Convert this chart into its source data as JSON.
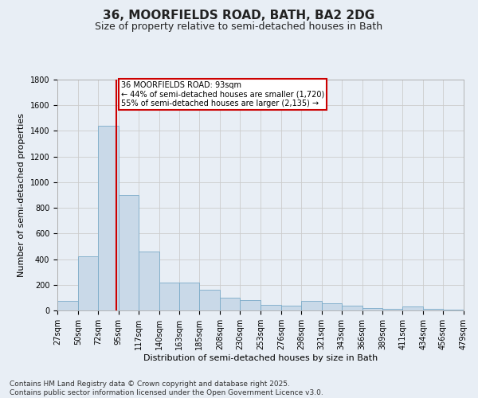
{
  "title": "36, MOORFIELDS ROAD, BATH, BA2 2DG",
  "subtitle": "Size of property relative to semi-detached houses in Bath",
  "xlabel": "Distribution of semi-detached houses by size in Bath",
  "ylabel": "Number of semi-detached properties",
  "footnote1": "Contains HM Land Registry data © Crown copyright and database right 2025.",
  "footnote2": "Contains public sector information licensed under the Open Government Licence v3.0.",
  "annotation_title": "36 MOORFIELDS ROAD: 93sqm",
  "annotation_line1": "← 44% of semi-detached houses are smaller (1,720)",
  "annotation_line2": "55% of semi-detached houses are larger (2,135) →",
  "property_size": 93,
  "bar_left_edges": [
    27,
    50,
    72,
    95,
    117,
    140,
    163,
    185,
    208,
    230,
    253,
    276,
    298,
    321,
    343,
    366,
    389,
    411,
    434,
    456
  ],
  "bar_widths": [
    23,
    22,
    23,
    22,
    23,
    23,
    22,
    23,
    22,
    23,
    23,
    22,
    23,
    22,
    23,
    23,
    22,
    23,
    22,
    23
  ],
  "bar_heights": [
    75,
    420,
    1440,
    900,
    460,
    215,
    215,
    160,
    100,
    80,
    45,
    35,
    75,
    55,
    35,
    20,
    15,
    30,
    10,
    5
  ],
  "bar_color": "#c9d9e8",
  "bar_edge_color": "#7aaac8",
  "vline_color": "#cc0000",
  "vline_x": 93,
  "ylim": [
    0,
    1800
  ],
  "yticks": [
    0,
    200,
    400,
    600,
    800,
    1000,
    1200,
    1400,
    1600,
    1800
  ],
  "xtick_labels": [
    "27sqm",
    "50sqm",
    "72sqm",
    "95sqm",
    "117sqm",
    "140sqm",
    "163sqm",
    "185sqm",
    "208sqm",
    "230sqm",
    "253sqm",
    "276sqm",
    "298sqm",
    "321sqm",
    "343sqm",
    "366sqm",
    "389sqm",
    "411sqm",
    "434sqm",
    "456sqm",
    "479sqm"
  ],
  "xtick_positions": [
    27,
    50,
    72,
    95,
    117,
    140,
    163,
    185,
    208,
    230,
    253,
    276,
    298,
    321,
    343,
    366,
    389,
    411,
    434,
    456,
    479
  ],
  "grid_color": "#cccccc",
  "bg_color": "#e8eef5",
  "annotation_box_color": "#ffffff",
  "annotation_box_edge": "#cc0000",
  "title_fontsize": 11,
  "subtitle_fontsize": 9,
  "axis_label_fontsize": 8,
  "tick_fontsize": 7,
  "annotation_fontsize": 7,
  "footnote_fontsize": 6.5
}
